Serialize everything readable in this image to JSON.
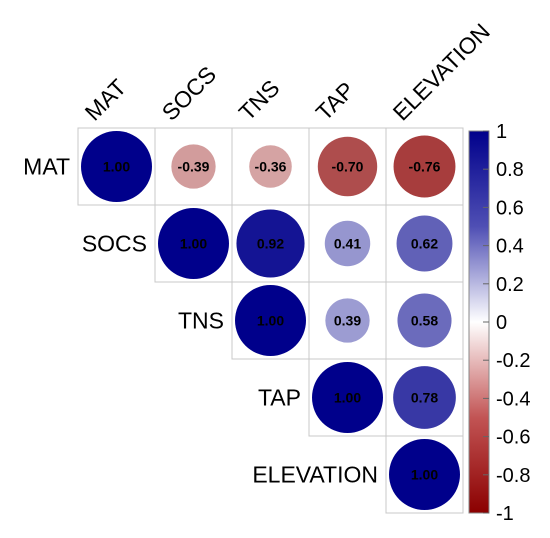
{
  "chart_data": {
    "type": "heatmap",
    "style": "correlation-circles-upper-triangle",
    "variables": [
      "MAT",
      "SOCS",
      "TNS",
      "TAP",
      "ELEVATION"
    ],
    "matrix": [
      [
        1.0,
        -0.39,
        -0.36,
        -0.7,
        -0.76
      ],
      [
        null,
        1.0,
        0.92,
        0.41,
        0.62
      ],
      [
        null,
        null,
        1.0,
        0.39,
        0.58
      ],
      [
        null,
        null,
        null,
        1.0,
        0.78
      ],
      [
        null,
        null,
        null,
        null,
        1.0
      ]
    ],
    "value_labels": [
      [
        "1.00",
        "-0.39",
        "-0.36",
        "-0.70",
        "-0.76"
      ],
      [
        "",
        "1.00",
        "0.92",
        "0.41",
        "0.62"
      ],
      [
        "",
        "",
        "1.00",
        "0.39",
        "0.58"
      ],
      [
        "",
        "",
        "",
        "1.00",
        "0.78"
      ],
      [
        "",
        "",
        "",
        "",
        "1.00"
      ]
    ],
    "colorbar": {
      "range": [
        -1,
        1
      ],
      "tick_labels": [
        "1",
        "0.8",
        "0.6",
        "0.4",
        "0.2",
        "0",
        "-0.2",
        "-0.4",
        "-0.6",
        "-0.8",
        "-1"
      ],
      "colors": {
        "negative": "#8b0000",
        "mid": "#ffffff",
        "positive": "#00008b"
      }
    },
    "legend_placement": "right",
    "grid": true
  }
}
